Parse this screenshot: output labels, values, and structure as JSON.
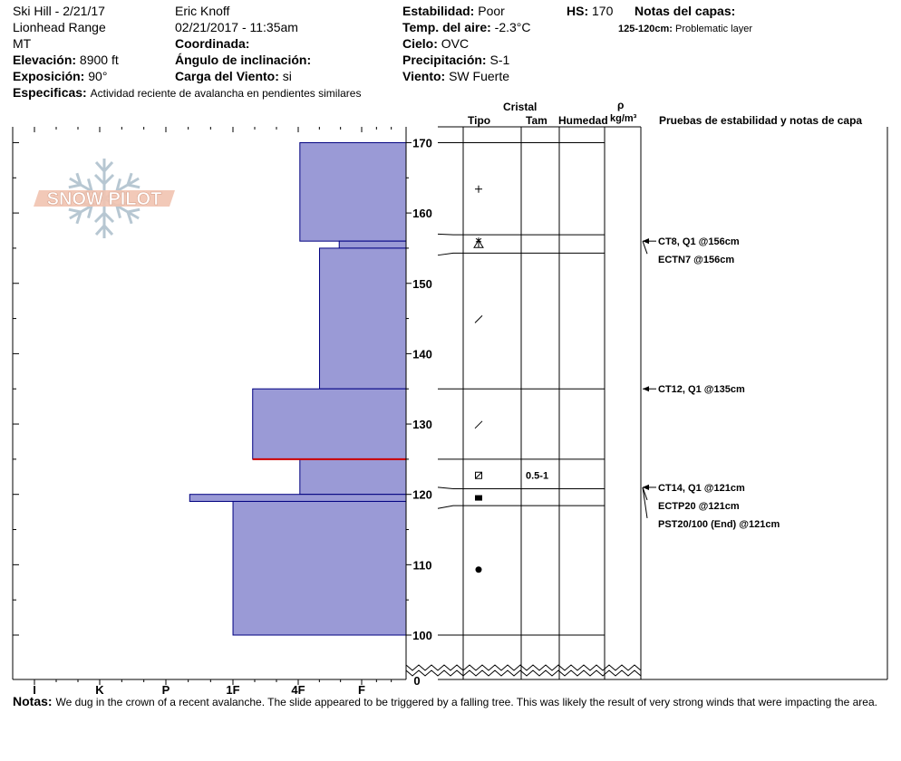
{
  "header": {
    "location": "Ski Hill - 2/21/17",
    "range": "Lionhead Range",
    "state": "MT",
    "elevation_label": "Elevación:",
    "elevation_value": "8900 ft",
    "exposure_label": "Exposición:",
    "exposure_value": "90°",
    "observer": "Eric Knoff",
    "datetime": "02/21/2017 - 11:35am",
    "coord_label": "Coordinada:",
    "angle_label": "Ángulo de inclinación:",
    "wind_load_label": "Carga del Viento:",
    "wind_load_value": "si",
    "stability_label": "Estabilidad:",
    "stability_value": "Poor",
    "air_temp_label": "Temp. del aire:",
    "air_temp_value": "-2.3°C",
    "sky_label": "Cielo:",
    "sky_value": "OVC",
    "precip_label": "Precipitación:",
    "precip_value": "S-1",
    "wind_label": "Viento:",
    "wind_value": "SW Fuerte",
    "hs_label": "HS:",
    "hs_value": "170",
    "layer_notes_label": "Notas del capas:",
    "layer_note_range": "125-120cm:",
    "layer_note_text": "Problematic layer",
    "specifics_label": "Especificas:",
    "specifics_value": "Actividad reciente de avalancha en pendientes similares"
  },
  "columns": {
    "crystal": "Cristal",
    "type": "Tipo",
    "size": "Tam",
    "moisture": "Humedad",
    "rho": "ρ",
    "density_unit": "kg/m³",
    "tests": "Pruebas de estabilidad y notas de capa"
  },
  "logo_text": "SNOW PILOT",
  "footer": {
    "notes_label": "Notas:",
    "notes_value": "We dug in the crown of a recent avalanche. The slide appeared to be triggered by a falling tree. This was likely the result of very strong winds that were impacting the area."
  },
  "colors": {
    "hardness_fill": "#9a9ad6",
    "hardness_stroke": "#000080",
    "weak_layer": "#cc0000"
  },
  "chart_data": {
    "type": "snow_profile",
    "depth_axis": {
      "min": 100,
      "max": 170,
      "ticks": [
        100,
        110,
        120,
        130,
        140,
        150,
        160,
        170
      ],
      "break_label": "0"
    },
    "hardness_axis": {
      "ticks": [
        "I",
        "K",
        "P",
        "1F",
        "4F",
        "F"
      ]
    },
    "hardness_layers": [
      {
        "top": 170,
        "bottom": 156,
        "hardness": 0.27
      },
      {
        "top": 156,
        "bottom": 155,
        "hardness": 0.17
      },
      {
        "top": 155,
        "bottom": 135,
        "hardness": 0.22
      },
      {
        "top": 135,
        "bottom": 125,
        "hardness": 0.39
      },
      {
        "top": 125,
        "bottom": 120,
        "hardness": 0.27
      },
      {
        "top": 120,
        "bottom": 119,
        "hardness": 0.55
      },
      {
        "top": 119,
        "bottom": 100,
        "hardness": 0.44
      }
    ],
    "weak_layer_depth": 125,
    "layer_boundaries": [
      170,
      156.9,
      154.3,
      135,
      125,
      120.8,
      118.4,
      100
    ],
    "crystal_symbols": [
      {
        "depth": 163.4,
        "symbol": "+"
      },
      {
        "depth": 155.6,
        "symbol": "surface-hoar"
      },
      {
        "depth": 144.9,
        "symbol": "/"
      },
      {
        "depth": 129.9,
        "symbol": "/"
      },
      {
        "depth": 122.7,
        "symbol": "faceted-rounded"
      },
      {
        "depth": 119.5,
        "symbol": "faceted"
      },
      {
        "depth": 109.3,
        "symbol": "rounded"
      }
    ],
    "grain_sizes": [
      {
        "depth": 122.7,
        "value": "0.5-1"
      }
    ],
    "stability_tests": [
      {
        "depth": 156,
        "label": "CT8, Q1 @156cm"
      },
      {
        "depth": 156,
        "label": "ECTN7 @156cm"
      },
      {
        "depth": 135,
        "label": "CT12, Q1 @135cm"
      },
      {
        "depth": 121,
        "label": "CT14, Q1 @121cm"
      },
      {
        "depth": 121,
        "label": "ECTP20 @121cm"
      },
      {
        "depth": 121,
        "label": "PST20/100 (End) @121cm"
      }
    ]
  }
}
